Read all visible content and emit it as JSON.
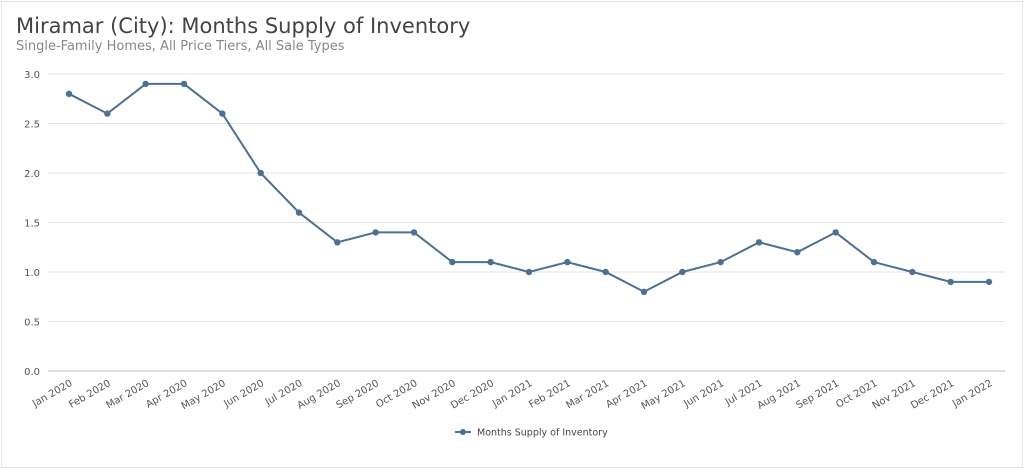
{
  "chart_data": {
    "type": "line",
    "title": "Miramar (City): Months Supply of Inventory",
    "subtitle": "Single-Family Homes, All Price Tiers, All Sale Types",
    "categories": [
      "Jan 2020",
      "Feb 2020",
      "Mar 2020",
      "Apr 2020",
      "May 2020",
      "Jun 2020",
      "Jul 2020",
      "Aug 2020",
      "Sep 2020",
      "Oct 2020",
      "Nov 2020",
      "Dec 2020",
      "Jan 2021",
      "Feb 2021",
      "Mar 2021",
      "Apr 2021",
      "May 2021",
      "Jun 2021",
      "Jul 2021",
      "Aug 2021",
      "Sep 2021",
      "Oct 2021",
      "Nov 2021",
      "Dec 2021",
      "Jan 2022"
    ],
    "series": [
      {
        "name": "Months Supply of Inventory",
        "values": [
          2.8,
          2.6,
          2.9,
          2.9,
          2.6,
          2.0,
          1.6,
          1.3,
          1.4,
          1.4,
          1.1,
          1.1,
          1.0,
          1.1,
          1.0,
          0.8,
          1.0,
          1.1,
          1.3,
          1.2,
          1.4,
          1.1,
          1.0,
          0.9,
          0.9
        ],
        "color": "#4e7092"
      }
    ],
    "ylim": [
      0,
      3.0
    ],
    "yticks": [
      "0.0",
      "0.5",
      "1.0",
      "1.5",
      "2.0",
      "2.5",
      "3.0"
    ],
    "grid": true,
    "legend": "bottom-center",
    "xlabel": "",
    "ylabel": ""
  }
}
